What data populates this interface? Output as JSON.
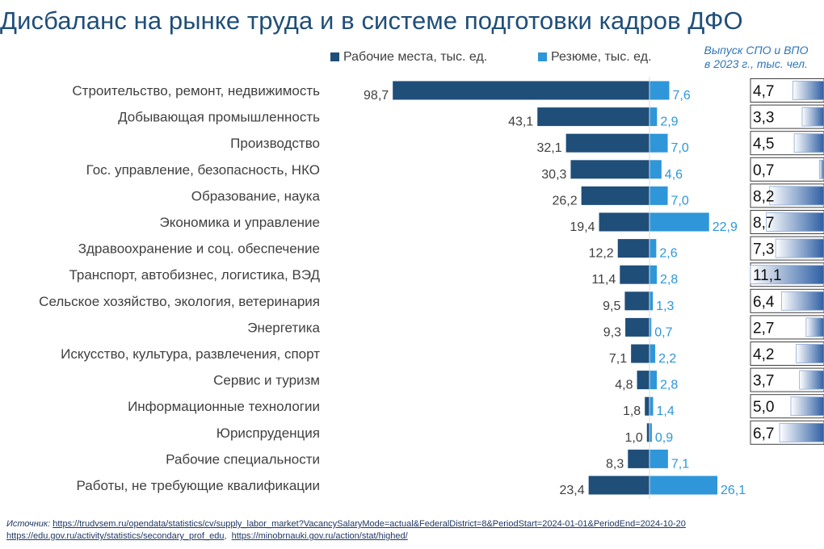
{
  "title": "Дисбаланс на рынке труда и в системе подготовки кадров ДФО",
  "legend": {
    "jobs": "Рабочие места, тыс. ед.",
    "resumes": "Резюме, тыс. ед.",
    "graduates_line1": "Выпуск СПО и ВПО",
    "graduates_line2": "в 2023 г., тыс. чел."
  },
  "colors": {
    "jobs": "#1f4e79",
    "resumes": "#2e96d9",
    "title": "#1f4e79",
    "graduates": "#2e75b6"
  },
  "chart_data": {
    "type": "bar",
    "orientation": "horizontal-diverging",
    "categories": [
      "Строительство, ремонт, недвижимость",
      "Добывающая промышленность",
      "Производство",
      "Гос. управление, безопасность, НКО",
      "Образование, наука",
      "Экономика и управление",
      "Здравоохранение и соц. обеспечение",
      "Транспорт, автобизнес, логистика, ВЭД",
      "Сельское хозяйство, экология, ветеринария",
      "Энергетика",
      "Искусство, культура, развлечения, спорт",
      "Сервис и туризм",
      "Информационные технологии",
      "Юриспруденция",
      "Рабочие специальности",
      "Работы, не требующие квалификации"
    ],
    "series": [
      {
        "name": "Рабочие места, тыс. ед.",
        "values": [
          98.7,
          43.1,
          32.1,
          30.3,
          26.2,
          19.4,
          12.2,
          11.4,
          9.5,
          9.3,
          7.1,
          4.8,
          1.8,
          1.0,
          8.3,
          23.4
        ]
      },
      {
        "name": "Резюме, тыс. ед.",
        "values": [
          7.6,
          2.9,
          7.0,
          4.6,
          7.0,
          22.9,
          2.6,
          2.8,
          1.3,
          0.7,
          2.2,
          2.8,
          1.4,
          0.9,
          7.1,
          26.1
        ]
      }
    ],
    "jobs_labels": [
      "98,7",
      "43,1",
      "32,1",
      "30,3",
      "26,2",
      "19,4",
      "12,2",
      "11,4",
      "9,5",
      "9,3",
      "7,1",
      "4,8",
      "1,8",
      "1,0",
      "8,3",
      "23,4"
    ],
    "resume_labels": [
      "7,6",
      "2,9",
      "7,0",
      "4,6",
      "7,0",
      "22,9",
      "2,6",
      "2,8",
      "1,3",
      "0,7",
      "2,2",
      "2,8",
      "1,4",
      "0,9",
      "7,1",
      "26,1"
    ],
    "graduates": {
      "name": "Выпуск СПО и ВПО в 2023 г., тыс. чел.",
      "values": [
        4.7,
        3.3,
        4.5,
        0.7,
        8.2,
        8.7,
        7.3,
        11.1,
        6.4,
        2.7,
        4.2,
        3.7,
        5.0,
        6.7
      ],
      "labels": [
        "4,7",
        "3,3",
        "4,5",
        "0,7",
        "8,2",
        "8,7",
        "7,3",
        "11,1",
        "6,4",
        "2,7",
        "4,2",
        "3,7",
        "5,0",
        "6,7"
      ]
    }
  },
  "source": {
    "label": "Источник:",
    "links": [
      "https://trudvsem.ru/opendata/statistics/cv/supply_labor_market?VacancySalaryMode=actual&FederalDistrict=8&PeriodStart=2024-01-01&PeriodEnd=2024-10-20",
      "https://edu.gov.ru/activity/statistics/secondary_prof_edu",
      "https://minobrnauki.gov.ru/action/stat/highed/"
    ],
    "separator": ",  "
  }
}
